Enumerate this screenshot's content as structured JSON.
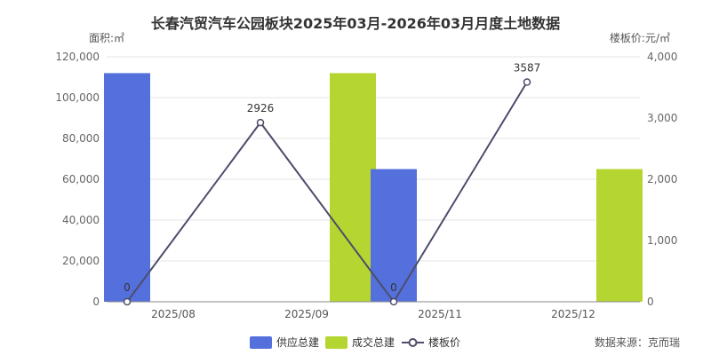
{
  "chart_data": {
    "type": "bar",
    "title": "长春汽贸汽车公园板块2025年03月-2026年03月月度土地数据",
    "ylabel_left": "面积:㎡",
    "ylabel_right": "楼板价:元/㎡",
    "categories": [
      "2025/08",
      "2025/09",
      "2025/11",
      "2025/12"
    ],
    "ylim_left": [
      0,
      120000
    ],
    "yticks_left": [
      "0",
      "20,000",
      "40,000",
      "60,000",
      "80,000",
      "100,000",
      "120,000"
    ],
    "ylim_right": [
      0,
      4000
    ],
    "yticks_right": [
      "0",
      "1,000",
      "2,000",
      "3,000",
      "4,000"
    ],
    "series": [
      {
        "name": "供应总建",
        "type": "bar",
        "axis": "left",
        "color": "#5470dd",
        "values": [
          112000,
          0,
          65000,
          0
        ]
      },
      {
        "name": "成交总建",
        "type": "bar",
        "axis": "left",
        "color": "#b5d630",
        "values": [
          0,
          112000,
          0,
          65000
        ]
      },
      {
        "name": "楼板价",
        "type": "line",
        "axis": "right",
        "color": "#4d4d6b",
        "values": [
          0,
          2926,
          0,
          3587
        ],
        "labels": [
          "0",
          "2926",
          "0",
          "3587"
        ]
      }
    ],
    "grid": true,
    "legend": "bottom-center"
  },
  "source_text": "数据来源：克而瑞"
}
